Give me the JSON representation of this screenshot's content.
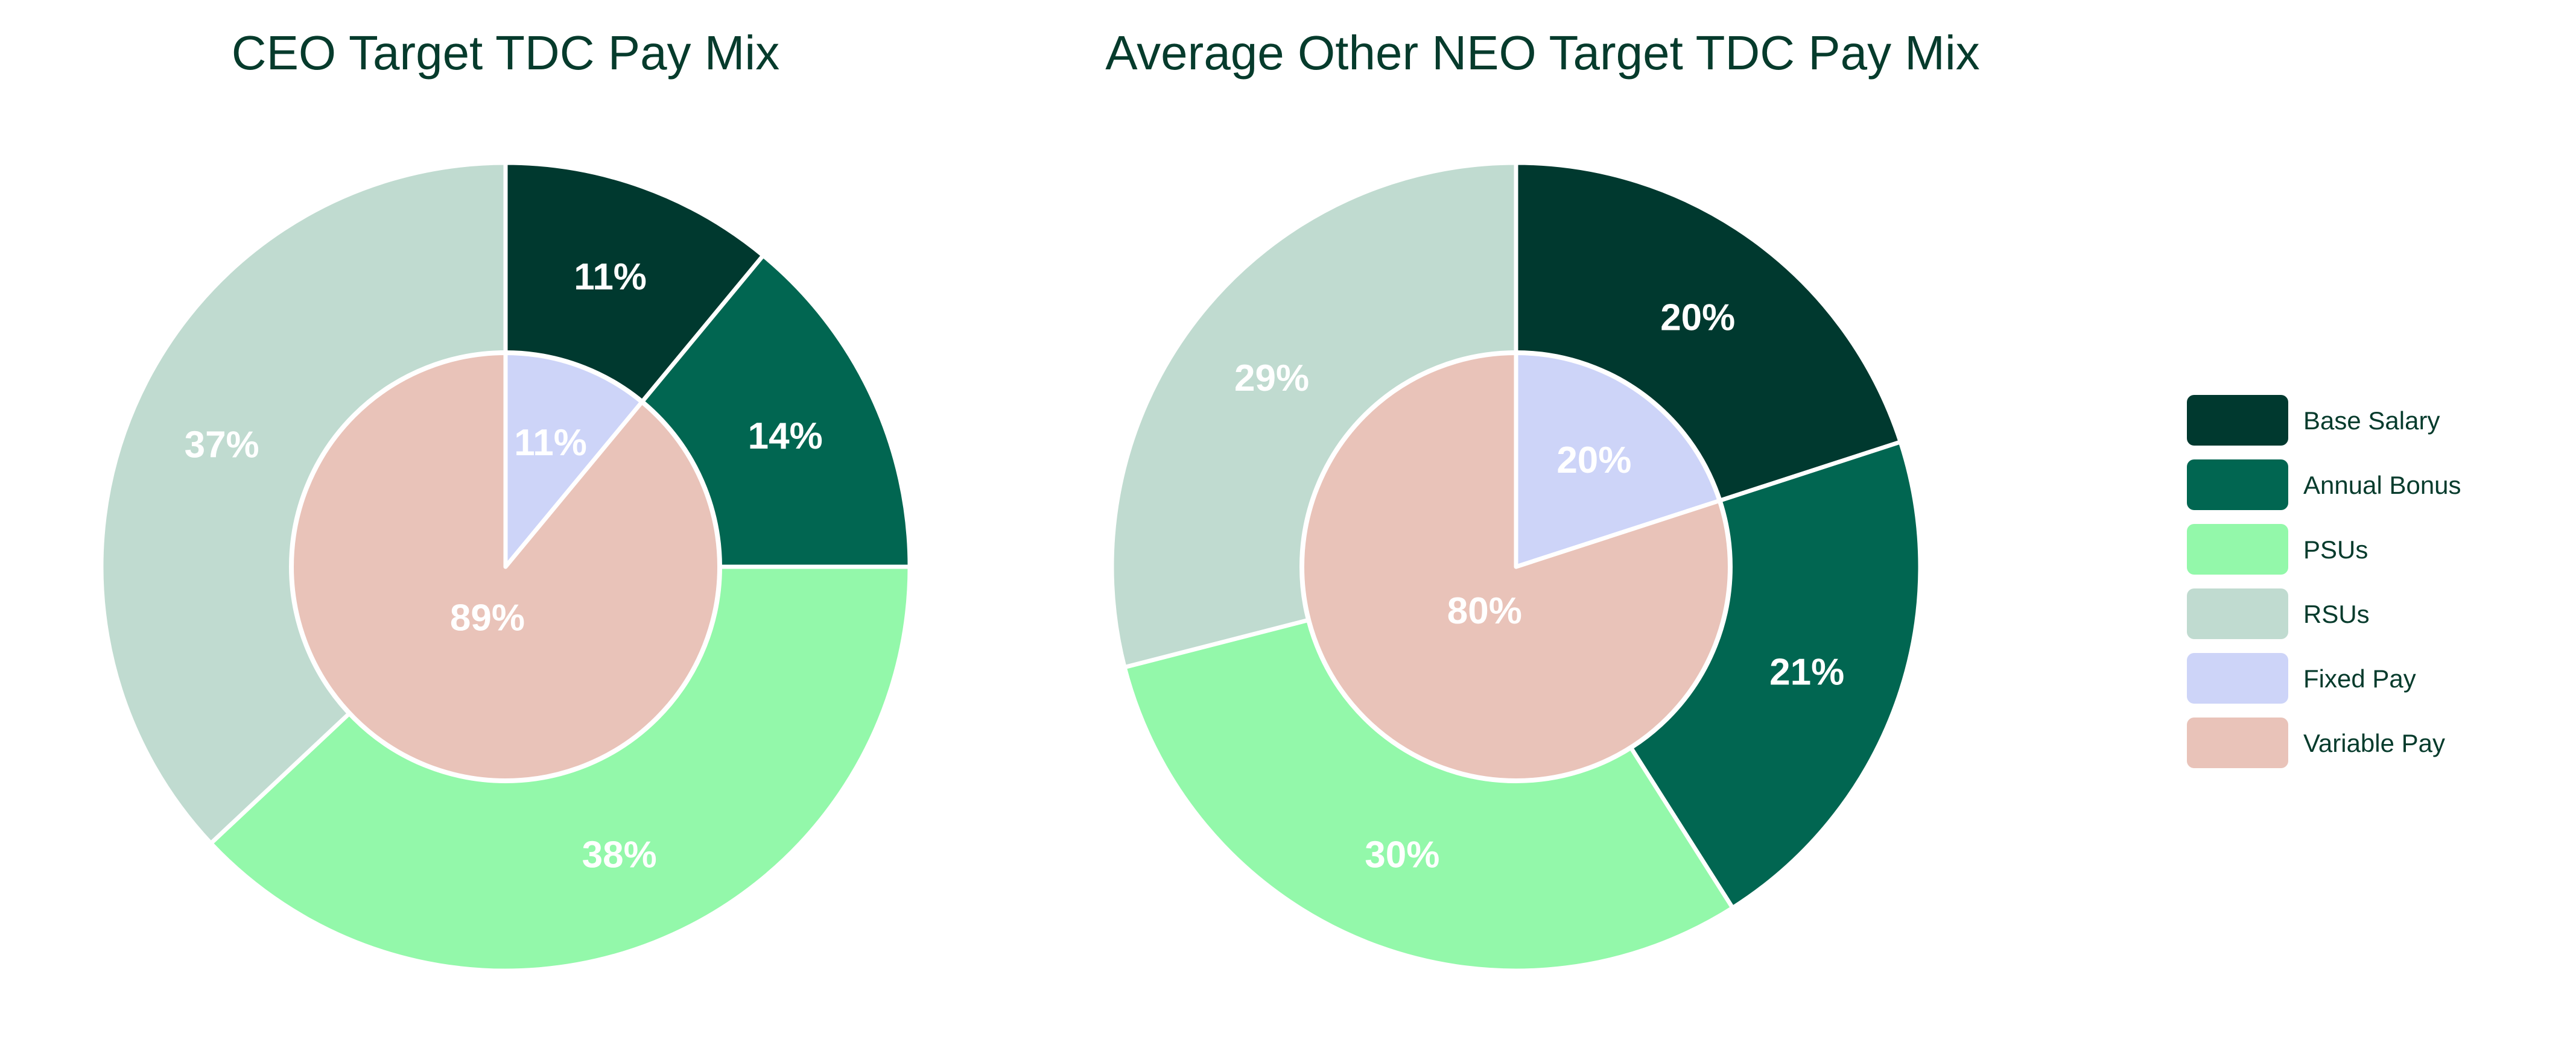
{
  "colors": {
    "base_salary": "#00392f",
    "annual_bonus": "#016651",
    "psus": "#93f8aa",
    "rsus": "#c0dbd0",
    "fixed_pay": "#cdd4f8",
    "variable_pay": "#e9c3b9",
    "title": "#063b2c",
    "label_dark_bg": "#ffffff",
    "label_light_bg": "#ffffff"
  },
  "chart_data": [
    {
      "type": "pie",
      "title": "CEO Target TDC Pay Mix",
      "outer": [
        {
          "name": "Base Salary",
          "value": 11,
          "label": "11%"
        },
        {
          "name": "Annual Bonus",
          "value": 14,
          "label": "14%"
        },
        {
          "name": "PSUs",
          "value": 38,
          "label": "38%"
        },
        {
          "name": "RSUs",
          "value": 37,
          "label": "37%"
        }
      ],
      "inner": [
        {
          "name": "Fixed Pay",
          "value": 11,
          "label": "11%"
        },
        {
          "name": "Variable Pay",
          "value": 89,
          "label": "89%"
        }
      ]
    },
    {
      "type": "pie",
      "title": "Average Other NEO Target TDC Pay Mix",
      "outer": [
        {
          "name": "Base Salary",
          "value": 20,
          "label": "20%"
        },
        {
          "name": "Annual Bonus",
          "value": 21,
          "label": "21%"
        },
        {
          "name": "PSUs",
          "value": 30,
          "label": "30%"
        },
        {
          "name": "RSUs",
          "value": 29,
          "label": "29%"
        }
      ],
      "inner": [
        {
          "name": "Fixed Pay",
          "value": 20,
          "label": "20%"
        },
        {
          "name": "Variable Pay",
          "value": 80,
          "label": "80%"
        }
      ]
    }
  ],
  "legend": {
    "placement": "right",
    "items": [
      {
        "label": "Base Salary",
        "color_key": "base_salary"
      },
      {
        "label": "Annual Bonus",
        "color_key": "annual_bonus"
      },
      {
        "label": "PSUs",
        "color_key": "psus"
      },
      {
        "label": "RSUs",
        "color_key": "rsus"
      },
      {
        "label": "Fixed Pay",
        "color_key": "fixed_pay"
      },
      {
        "label": "Variable Pay",
        "color_key": "variable_pay"
      }
    ]
  }
}
